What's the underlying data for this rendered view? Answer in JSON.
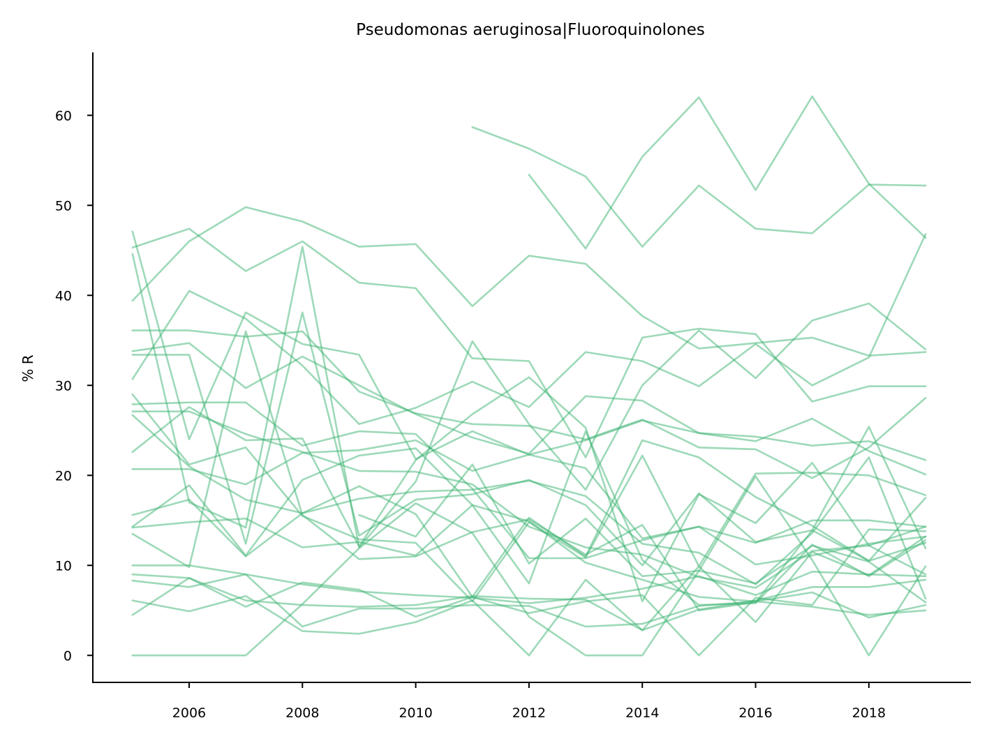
{
  "chart_data": {
    "type": "line",
    "title": "Pseudomonas aeruginosa|Fluoroquinolones",
    "xlabel": "",
    "ylabel": "% R",
    "xlim": [
      2004.3,
      2019.8
    ],
    "ylim": [
      -3,
      67
    ],
    "xticks": [
      2006,
      2008,
      2010,
      2012,
      2014,
      2016,
      2018
    ],
    "yticks": [
      0,
      10,
      20,
      30,
      40,
      50,
      60
    ],
    "grid": false,
    "line_color": "#3cb371",
    "series": [
      {
        "x": [
          2011,
          2012,
          2013,
          2014,
          2015,
          2016,
          2017,
          2018,
          2019
        ],
        "values": [
          58.7,
          56.3,
          53.2,
          45.4,
          52.2,
          47.4,
          46.9,
          52.3,
          52.2
        ]
      },
      {
        "x": [
          2012,
          2013,
          2014,
          2015,
          2016,
          2017,
          2018,
          2019
        ],
        "values": [
          53.4,
          45.2,
          55.4,
          62.0,
          51.7,
          62.1,
          52.4,
          46.4
        ]
      },
      {
        "x": [
          2005,
          2006,
          2007,
          2008,
          2009,
          2010,
          2011,
          2012,
          2013,
          2014,
          2015,
          2016,
          2017,
          2018,
          2019
        ],
        "values": [
          45.3,
          47.4,
          42.7,
          46.0,
          41.4,
          40.8,
          33.0,
          32.7,
          22.0,
          35.3,
          36.3,
          35.7,
          28.2,
          29.9,
          29.9
        ]
      },
      {
        "x": [
          2005,
          2006,
          2007,
          2008,
          2009,
          2010,
          2011,
          2012,
          2013,
          2014,
          2015,
          2016,
          2017,
          2018,
          2019
        ],
        "values": [
          39.4,
          46.0,
          49.8,
          48.2,
          45.4,
          45.7,
          38.8,
          44.4,
          43.5,
          37.7,
          34.1,
          34.7,
          35.3,
          33.3,
          33.7
        ]
      },
      {
        "x": [
          2005,
          2006,
          2007,
          2008,
          2009,
          2010,
          2011,
          2012,
          2013,
          2014,
          2015,
          2016,
          2017,
          2018,
          2019
        ],
        "values": [
          47.1,
          24.0,
          38.1,
          34.6,
          33.4,
          21.8,
          24.9,
          22.3,
          23.9,
          26.1,
          24.7,
          24.3,
          23.3,
          23.8,
          21.7
        ]
      },
      {
        "x": [
          2005,
          2006,
          2007,
          2008,
          2009,
          2010,
          2011,
          2012,
          2013,
          2014,
          2015,
          2016,
          2017,
          2018,
          2019
        ],
        "values": [
          30.7,
          40.5,
          37.4,
          32.2,
          25.7,
          27.5,
          30.4,
          27.6,
          33.7,
          32.7,
          29.9,
          34.6,
          30.0,
          33.1,
          46.8
        ]
      },
      {
        "x": [
          2005,
          2006,
          2007,
          2008,
          2009,
          2010,
          2011,
          2012,
          2013,
          2014,
          2015,
          2016,
          2017,
          2018,
          2019
        ],
        "values": [
          44.6,
          17.0,
          14.2,
          45.4,
          12.0,
          19.3,
          34.9,
          25.7,
          18.4,
          30.0,
          36.1,
          30.8,
          37.2,
          39.1,
          34.0
        ]
      },
      {
        "x": [
          2005,
          2006,
          2007,
          2008,
          2009,
          2010,
          2011,
          2012,
          2013,
          2014,
          2015,
          2016,
          2017,
          2018,
          2019
        ],
        "values": [
          36.1,
          36.1,
          35.4,
          36.0,
          29.3,
          26.9,
          25.7,
          25.5,
          24.0,
          26.2,
          23.1,
          22.9,
          19.7,
          23.1,
          28.6
        ]
      },
      {
        "x": [
          2005,
          2006,
          2007,
          2008,
          2009,
          2010,
          2011,
          2012,
          2013,
          2014,
          2015,
          2016,
          2017,
          2018,
          2019
        ],
        "values": [
          33.8,
          34.7,
          29.7,
          33.2,
          30.0,
          26.8,
          24.2,
          22.4,
          28.8,
          28.3,
          24.7,
          23.8,
          26.3,
          22.7,
          20.1
        ]
      },
      {
        "x": [
          2005,
          2006,
          2007,
          2008,
          2009,
          2010,
          2011,
          2012,
          2013,
          2014,
          2015,
          2016,
          2017,
          2018,
          2019
        ],
        "values": [
          33.4,
          33.4,
          12.4,
          38.1,
          13.3,
          17.3,
          17.9,
          19.5,
          16.7,
          10.0,
          18.0,
          12.6,
          13.9,
          10.5,
          12.5
        ]
      },
      {
        "x": [
          2005,
          2006,
          2007,
          2008,
          2009,
          2010,
          2011,
          2012,
          2013,
          2014,
          2015,
          2016,
          2017,
          2018,
          2019
        ],
        "values": [
          27.9,
          28.1,
          28.1,
          23.3,
          24.9,
          24.6,
          18.5,
          10.8,
          10.8,
          12.8,
          14.3,
          10.1,
          11.1,
          12.4,
          13.2
        ]
      },
      {
        "x": [
          2005,
          2006,
          2007,
          2008,
          2009,
          2010,
          2011,
          2012,
          2013,
          2014,
          2015,
          2016,
          2017,
          2018,
          2019
        ],
        "values": [
          27.1,
          27.1,
          24.6,
          22.6,
          20.5,
          20.4,
          19.0,
          14.3,
          12.0,
          11.2,
          8.7,
          7.5,
          11.6,
          12.2,
          9.0
        ]
      },
      {
        "x": [
          2005,
          2006,
          2007,
          2008,
          2009,
          2010,
          2011,
          2012,
          2013,
          2014,
          2015,
          2016,
          2017,
          2018,
          2019
        ],
        "values": [
          29.0,
          21.2,
          23.1,
          15.5,
          12.9,
          12.5,
          6.0,
          14.8,
          10.9,
          22.2,
          9.9,
          20.2,
          20.3,
          20.0,
          17.8
        ]
      },
      {
        "x": [
          2005,
          2006,
          2007,
          2008,
          2009,
          2010,
          2011,
          2012,
          2013,
          2014,
          2015,
          2016,
          2017,
          2018,
          2019
        ],
        "values": [
          22.6,
          27.6,
          23.9,
          24.1,
          12.1,
          21.7,
          26.8,
          30.9,
          25.3,
          6.0,
          17.9,
          14.7,
          21.4,
          12.2,
          14.3
        ]
      },
      {
        "x": [
          2005,
          2006,
          2007,
          2008,
          2009,
          2010,
          2011,
          2012,
          2013,
          2014,
          2015,
          2016,
          2017,
          2018,
          2019
        ],
        "values": [
          26.7,
          21.0,
          17.3,
          15.8,
          17.4,
          18.2,
          18.4,
          19.4,
          17.7,
          12.4,
          11.4,
          7.9,
          13.6,
          22.0,
          6.3
        ]
      },
      {
        "x": [
          2005,
          2006,
          2007,
          2008,
          2009,
          2010,
          2011,
          2012,
          2013,
          2014,
          2015,
          2016,
          2017,
          2018,
          2019
        ],
        "values": [
          20.7,
          20.7,
          19.0,
          22.5,
          22.8,
          23.9,
          20.5,
          22.3,
          20.8,
          13.0,
          14.3,
          12.5,
          15.0,
          15.0,
          14.3
        ]
      },
      {
        "x": [
          2005,
          2006,
          2007,
          2008,
          2009,
          2010,
          2011,
          2012,
          2013,
          2014,
          2015,
          2016,
          2017,
          2018,
          2019
        ],
        "values": [
          15.6,
          17.3,
          11.0,
          15.8,
          18.8,
          15.7,
          6.5,
          15.3,
          11.0,
          23.9,
          22.0,
          17.6,
          14.4,
          10.5,
          17.5
        ]
      },
      {
        "x": [
          2005,
          2006,
          2007,
          2008,
          2009,
          2010,
          2011,
          2012,
          2013,
          2014,
          2015,
          2016,
          2017,
          2018,
          2019
        ],
        "values": [
          14.2,
          14.8,
          15.2,
          12.0,
          12.6,
          11.1,
          16.7,
          8.0,
          24.9,
          10.6,
          5.6,
          5.8,
          12.3,
          8.8,
          12.8
        ]
      },
      {
        "x": [
          2005,
          2006,
          2007,
          2008,
          2009,
          2010,
          2011,
          2012,
          2013,
          2014,
          2015,
          2016,
          2017,
          2018,
          2019
        ],
        "values": [
          13.5,
          9.8,
          36.0,
          15.6,
          10.7,
          11.0,
          13.7,
          15.1,
          11.2,
          14.5,
          5.0,
          5.9,
          13.9,
          25.4,
          11.9
        ]
      },
      {
        "x": [
          2005,
          2006,
          2007,
          2008,
          2009,
          2010,
          2011,
          2012,
          2013,
          2014,
          2015,
          2016,
          2017,
          2018,
          2019
        ],
        "values": [
          10.0,
          10.0,
          9.0,
          7.9,
          7.1,
          6.7,
          6.4,
          5.8,
          6.4,
          7.4,
          8.8,
          6.7,
          9.3,
          9.0,
          8.8
        ]
      },
      {
        "x": [
          2005,
          2006,
          2007,
          2008,
          2009,
          2010,
          2011,
          2012,
          2013,
          2014,
          2015,
          2016,
          2017,
          2018,
          2019
        ],
        "values": [
          9.0,
          8.6,
          6.1,
          5.6,
          5.4,
          5.6,
          6.6,
          6.3,
          6.2,
          2.8,
          5.1,
          6.1,
          7.6,
          7.6,
          8.4
        ]
      },
      {
        "x": [
          2005,
          2006,
          2007,
          2008,
          2009,
          2010,
          2011,
          2012,
          2013,
          2014,
          2015,
          2016,
          2017,
          2018,
          2019
        ],
        "values": [
          8.3,
          7.6,
          9.0,
          3.2,
          5.2,
          5.2,
          5.6,
          5.5,
          3.2,
          3.5,
          5.5,
          6.0,
          7.0,
          4.2,
          5.6
        ]
      },
      {
        "x": [
          2005,
          2006,
          2007,
          2008,
          2009,
          2010,
          2011,
          2012,
          2013,
          2014,
          2015,
          2016,
          2017,
          2018,
          2019
        ],
        "values": [
          6.1,
          4.9,
          6.6,
          2.7,
          2.4,
          3.7,
          6.1,
          0.0,
          8.4,
          2.8,
          9.9,
          3.7,
          11.5,
          8.9,
          13.2
        ]
      },
      {
        "x": [
          2005,
          2006,
          2007,
          2008,
          2009,
          2010,
          2011,
          2012,
          2013,
          2014,
          2015,
          2016,
          2017,
          2018,
          2019
        ],
        "values": [
          4.5,
          8.6,
          5.4,
          8.1,
          7.3,
          4.3,
          6.5,
          4.7,
          6.0,
          6.7,
          0.0,
          6.4,
          5.6,
          14.0,
          13.8
        ]
      },
      {
        "x": [
          2005,
          2006,
          2007,
          2008,
          2009,
          2010,
          2011,
          2012,
          2013,
          2014,
          2015,
          2016,
          2017,
          2018,
          2019
        ],
        "values": [
          0.0,
          0.0,
          0.0,
          5.7,
          11.9,
          16.9,
          13.6,
          4.3,
          0.0,
          0.0,
          9.4,
          19.9,
          10.6,
          0.0,
          9.9
        ]
      },
      {
        "x": [
          2009,
          2010,
          2011,
          2012,
          2013,
          2014,
          2015,
          2016,
          2017,
          2018,
          2019
        ],
        "values": [
          15.6,
          13.2,
          21.2,
          10.2,
          15.2,
          8.8,
          9.4,
          8.0,
          12.2,
          10.4,
          5.9
        ]
      },
      {
        "x": [
          2005,
          2006,
          2007,
          2008,
          2009,
          2010,
          2011,
          2012,
          2013,
          2014,
          2015,
          2016,
          2017,
          2018,
          2019
        ],
        "values": [
          14.3,
          18.9,
          11.1,
          19.5,
          22.2,
          23.0,
          16.7,
          14.9,
          10.3,
          8.4,
          6.5,
          6.0,
          5.4,
          4.5,
          5.0
        ]
      }
    ]
  }
}
